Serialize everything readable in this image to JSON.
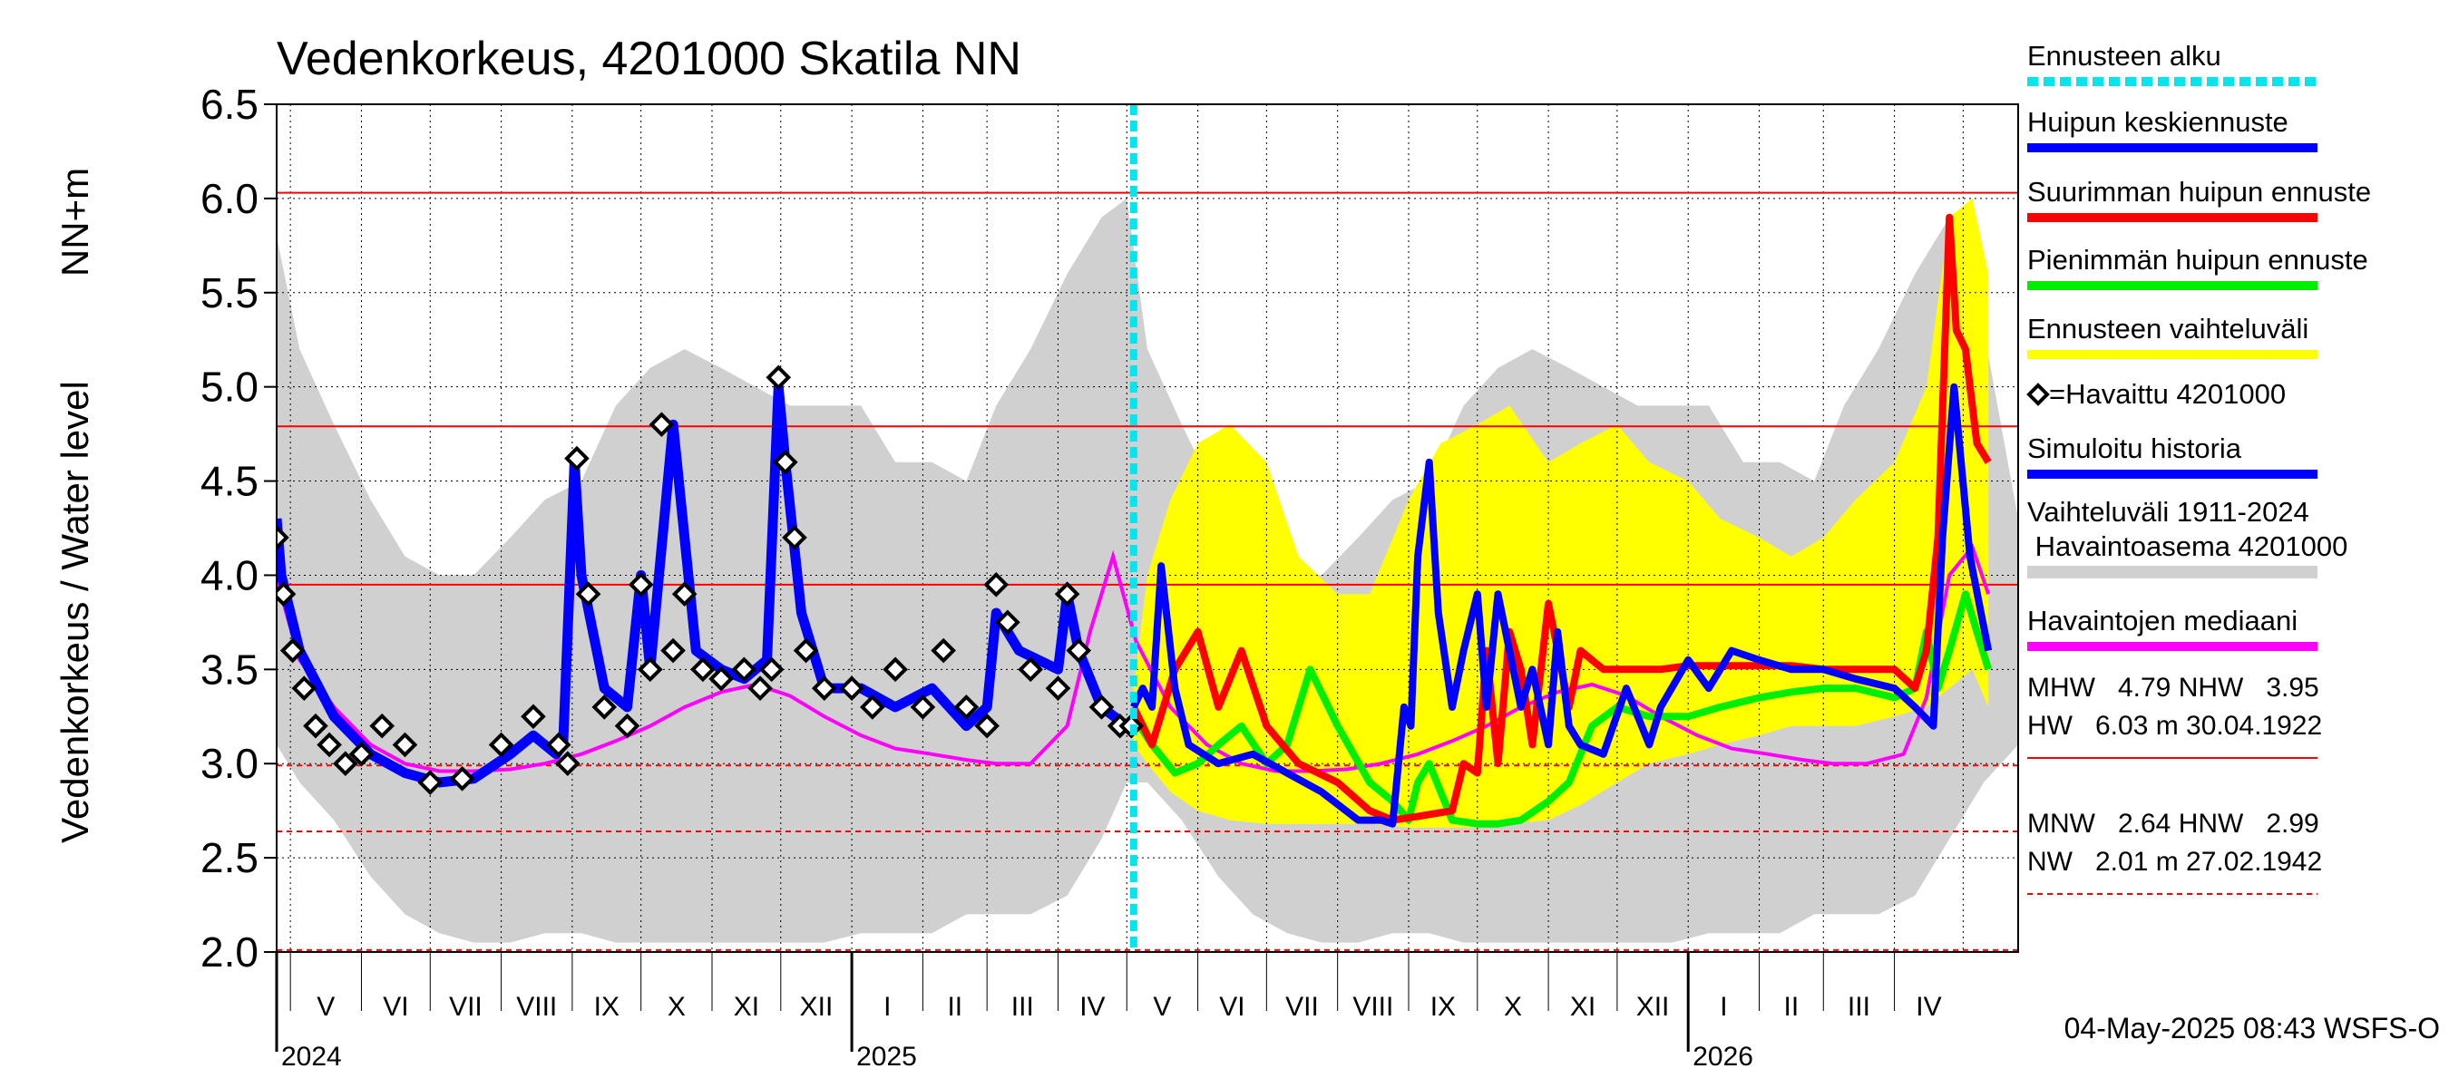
{
  "chart_data": {
    "type": "line",
    "title": "Vedenkorkeus, 4201000 Skatila NN",
    "ylabel": "Vedenkorkeus / Water level",
    "yunit": "NN+m",
    "ylim": [
      2.0,
      6.5
    ],
    "yticks": [
      "6.5",
      "6.0",
      "5.5",
      "5.0",
      "4.5",
      "4.0",
      "3.5",
      "3.0",
      "2.5",
      "2.0"
    ],
    "xlim": [
      "2024-04-25",
      "2026-05-25"
    ],
    "forecast_start": "2025-05-04",
    "months": [
      "V",
      "VI",
      "VII",
      "VIII",
      "IX",
      "X",
      "XI",
      "XII",
      "I",
      "II",
      "III",
      "IV",
      "V",
      "VI",
      "VII",
      "VIII",
      "IX",
      "X",
      "XI",
      "XII",
      "I",
      "II",
      "III",
      "IV"
    ],
    "years": [
      "2024",
      "2025",
      "2026"
    ],
    "grid": true,
    "legend_position": "right",
    "legend": [
      {
        "label": "Ennusteen alku",
        "color": "#00e5ee",
        "style": "dashed"
      },
      {
        "label": "Huipun keskiennuste",
        "color": "#0000ff",
        "style": "solid"
      },
      {
        "label": "Suurimman huipun ennuste",
        "color": "#ff0000",
        "style": "solid"
      },
      {
        "label": "Pienimmän huipun ennuste",
        "color": "#00ee00",
        "style": "solid"
      },
      {
        "label": "Ennusteen vaihteluväli",
        "color": "#ffff00",
        "style": "solid"
      },
      {
        "label": "=Havaittu 4201000",
        "color": "#000000",
        "style": "marker"
      },
      {
        "label": "Simuloitu historia",
        "color": "#0000ff",
        "style": "solid"
      },
      {
        "label": "Vaihteluväli 1911-2024\n Havaintoasema 4201000",
        "color": "#d0d0d0",
        "style": "solid"
      },
      {
        "label": "Havaintojen mediaani",
        "color": "#ff00ff",
        "style": "solid"
      }
    ],
    "stats": [
      {
        "text": "MHW   4.79 NHW   3.95\nHW   6.03 m 30.04.1922",
        "line_style": "solid"
      },
      {
        "text": "MNW   2.64 HNW   2.99\nNW   2.01 m 27.02.1942",
        "line_style": "dashed"
      }
    ],
    "reference_lines": [
      {
        "name": "HW",
        "value": 6.03,
        "style": "solid"
      },
      {
        "name": "MHW",
        "value": 4.79,
        "style": "solid"
      },
      {
        "name": "NHW",
        "value": 3.95,
        "style": "solid"
      },
      {
        "name": "HNW",
        "value": 2.99,
        "style": "dashed"
      },
      {
        "name": "MNW",
        "value": 2.64,
        "style": "dashed"
      },
      {
        "name": "NW",
        "value": 2.01,
        "style": "dashed"
      }
    ],
    "colors": {
      "band": "#d0d0d0",
      "forecast_band": "#ffff00",
      "median": "#ff00ff",
      "mean_forecast": "#0000ff",
      "max_forecast": "#ff0000",
      "min_forecast": "#00ee00",
      "observed": "#000000",
      "simulated": "#0000ff",
      "forecast_start": "#00e5ee",
      "reference": "#ff0000"
    },
    "series": {
      "band": {
        "x": [
          "2024-04-25",
          "2024-05-05",
          "2024-05-20",
          "2024-06-05",
          "2024-06-20",
          "2024-07-05",
          "2024-07-20",
          "2024-08-05",
          "2024-08-20",
          "2024-09-05",
          "2024-09-20",
          "2024-10-05",
          "2024-10-20",
          "2024-11-05",
          "2024-11-20",
          "2024-12-05",
          "2024-12-20",
          "2025-01-05",
          "2025-01-20",
          "2025-02-05",
          "2025-02-20",
          "2025-03-05",
          "2025-03-20",
          "2025-04-05",
          "2025-04-20",
          "2025-05-01",
          "2025-05-10",
          "2025-05-25",
          "2025-06-10",
          "2025-06-25",
          "2025-07-10",
          "2025-07-25",
          "2025-08-10",
          "2025-08-25",
          "2025-09-10",
          "2025-09-25",
          "2025-10-10",
          "2025-10-25",
          "2025-11-10",
          "2025-11-25",
          "2025-12-10",
          "2025-12-25",
          "2026-01-10",
          "2026-01-25",
          "2026-02-10",
          "2026-02-25",
          "2026-03-10",
          "2026-03-25",
          "2026-04-10",
          "2026-04-25",
          "2026-05-10",
          "2026-05-25"
        ],
        "high": [
          5.8,
          5.2,
          4.8,
          4.4,
          4.1,
          4.0,
          4.0,
          4.2,
          4.4,
          4.5,
          4.9,
          5.1,
          5.2,
          5.1,
          5.0,
          4.9,
          4.9,
          4.9,
          4.6,
          4.6,
          4.5,
          4.9,
          5.2,
          5.6,
          5.9,
          6.0,
          5.2,
          4.8,
          4.4,
          4.1,
          4.0,
          4.0,
          4.2,
          4.4,
          4.5,
          4.9,
          5.1,
          5.2,
          5.1,
          5.0,
          4.9,
          4.9,
          4.9,
          4.6,
          4.6,
          4.5,
          4.9,
          5.2,
          5.6,
          5.9,
          5.3,
          4.3
        ],
        "low": [
          3.1,
          2.9,
          2.7,
          2.4,
          2.2,
          2.1,
          2.05,
          2.05,
          2.1,
          2.1,
          2.05,
          2.05,
          2.05,
          2.05,
          2.05,
          2.05,
          2.05,
          2.1,
          2.1,
          2.1,
          2.2,
          2.2,
          2.2,
          2.3,
          2.6,
          2.9,
          2.9,
          2.7,
          2.4,
          2.2,
          2.1,
          2.05,
          2.05,
          2.1,
          2.1,
          2.05,
          2.05,
          2.05,
          2.05,
          2.05,
          2.05,
          2.05,
          2.1,
          2.1,
          2.1,
          2.2,
          2.2,
          2.2,
          2.3,
          2.6,
          2.9,
          3.1
        ]
      },
      "forecast_band": {
        "x": [
          "2025-05-04",
          "2025-05-10",
          "2025-05-20",
          "2025-06-01",
          "2025-06-15",
          "2025-07-01",
          "2025-07-15",
          "2025-08-01",
          "2025-08-15",
          "2025-09-01",
          "2025-09-15",
          "2025-10-01",
          "2025-10-15",
          "2025-11-01",
          "2025-11-15",
          "2025-12-01",
          "2025-12-15",
          "2026-01-01",
          "2026-01-15",
          "2026-02-01",
          "2026-02-15",
          "2026-03-01",
          "2026-03-15",
          "2026-04-01",
          "2026-04-15",
          "2026-04-25",
          "2026-05-05",
          "2026-05-12"
        ],
        "high": [
          3.4,
          4.0,
          4.4,
          4.7,
          4.8,
          4.6,
          4.1,
          3.9,
          3.9,
          4.4,
          4.7,
          4.8,
          4.9,
          4.6,
          4.7,
          4.8,
          4.6,
          4.5,
          4.3,
          4.2,
          4.1,
          4.2,
          4.4,
          4.6,
          5.0,
          5.9,
          6.0,
          5.6
        ],
        "low": [
          3.1,
          3.0,
          2.85,
          2.75,
          2.7,
          2.68,
          2.68,
          2.68,
          2.68,
          2.66,
          2.66,
          2.66,
          2.68,
          2.7,
          2.78,
          2.9,
          3.0,
          3.05,
          3.1,
          3.15,
          3.2,
          3.2,
          3.2,
          3.25,
          3.3,
          3.4,
          3.5,
          3.3
        ]
      },
      "median": {
        "x": [
          "2024-04-25",
          "2024-05-05",
          "2024-05-20",
          "2024-06-05",
          "2024-06-20",
          "2024-07-05",
          "2024-07-20",
          "2024-08-05",
          "2024-08-20",
          "2024-09-05",
          "2024-09-20",
          "2024-10-05",
          "2024-10-20",
          "2024-11-05",
          "2024-11-20",
          "2024-12-05",
          "2024-12-20",
          "2025-01-05",
          "2025-01-20",
          "2025-02-05",
          "2025-02-20",
          "2025-03-05",
          "2025-03-20",
          "2025-04-05",
          "2025-04-15",
          "2025-04-25",
          "2025-05-05",
          "2025-05-20",
          "2025-06-05",
          "2025-06-20",
          "2025-07-05",
          "2025-07-20",
          "2025-08-05",
          "2025-08-20",
          "2025-09-05",
          "2025-09-20",
          "2025-10-05",
          "2025-10-20",
          "2025-11-05",
          "2025-11-20",
          "2025-12-05",
          "2025-12-20",
          "2026-01-05",
          "2026-01-20",
          "2026-02-05",
          "2026-02-20",
          "2026-03-05",
          "2026-03-20",
          "2026-04-05",
          "2026-04-15",
          "2026-04-25",
          "2026-05-05",
          "2026-05-12"
        ],
        "y": [
          3.98,
          3.55,
          3.3,
          3.1,
          3.0,
          2.96,
          2.96,
          2.97,
          3.0,
          3.05,
          3.12,
          3.2,
          3.3,
          3.38,
          3.42,
          3.36,
          3.25,
          3.15,
          3.08,
          3.05,
          3.02,
          3.0,
          3.0,
          3.2,
          3.7,
          4.1,
          3.65,
          3.3,
          3.1,
          3.0,
          2.96,
          2.96,
          2.97,
          3.0,
          3.05,
          3.12,
          3.2,
          3.3,
          3.38,
          3.42,
          3.36,
          3.25,
          3.15,
          3.08,
          3.05,
          3.02,
          3.0,
          3.0,
          3.05,
          3.35,
          4.0,
          4.15,
          3.9
        ]
      },
      "simulated": {
        "x": [
          "2024-04-25",
          "2024-04-27",
          "2024-05-05",
          "2024-05-20",
          "2024-06-05",
          "2024-06-20",
          "2024-07-05",
          "2024-07-20",
          "2024-08-05",
          "2024-08-15",
          "2024-08-25",
          "2024-08-28",
          "2024-09-02",
          "2024-09-05",
          "2024-09-15",
          "2024-09-25",
          "2024-10-01",
          "2024-10-05",
          "2024-10-15",
          "2024-10-25",
          "2024-11-05",
          "2024-11-15",
          "2024-11-20",
          "2024-11-25",
          "2024-11-30",
          "2024-12-03",
          "2024-12-10",
          "2024-12-20",
          "2025-01-05",
          "2025-01-20",
          "2025-02-05",
          "2025-02-20",
          "2025-03-01",
          "2025-03-05",
          "2025-03-15",
          "2025-04-01",
          "2025-04-05",
          "2025-04-10",
          "2025-04-20",
          "2025-05-01",
          "2025-05-04"
        ],
        "y": [
          4.3,
          4.0,
          3.6,
          3.25,
          3.05,
          2.95,
          2.9,
          2.92,
          3.05,
          3.15,
          3.05,
          3.1,
          4.6,
          4.0,
          3.4,
          3.3,
          4.0,
          3.5,
          4.8,
          3.6,
          3.5,
          3.45,
          3.5,
          3.55,
          5.0,
          4.6,
          3.8,
          3.4,
          3.4,
          3.3,
          3.4,
          3.2,
          3.3,
          3.8,
          3.6,
          3.5,
          3.9,
          3.6,
          3.3,
          3.2,
          3.2
        ]
      },
      "observed": {
        "x": [
          "2024-04-25",
          "2024-04-28",
          "2024-05-02",
          "2024-05-07",
          "2024-05-12",
          "2024-05-18",
          "2024-05-25",
          "2024-06-01",
          "2024-06-10",
          "2024-06-20",
          "2024-07-01",
          "2024-07-15",
          "2024-08-01",
          "2024-08-15",
          "2024-08-26",
          "2024-08-30",
          "2024-09-03",
          "2024-09-08",
          "2024-09-15",
          "2024-09-25",
          "2024-10-01",
          "2024-10-05",
          "2024-10-10",
          "2024-10-15",
          "2024-10-20",
          "2024-10-28",
          "2024-11-05",
          "2024-11-15",
          "2024-11-22",
          "2024-11-27",
          "2024-11-30",
          "2024-12-03",
          "2024-12-07",
          "2024-12-12",
          "2024-12-20",
          "2025-01-01",
          "2025-01-10",
          "2025-01-20",
          "2025-02-01",
          "2025-02-10",
          "2025-02-20",
          "2025-03-01",
          "2025-03-05",
          "2025-03-10",
          "2025-03-20",
          "2025-04-01",
          "2025-04-05",
          "2025-04-10",
          "2025-04-20",
          "2025-04-28",
          "2025-05-03"
        ],
        "y": [
          4.2,
          3.9,
          3.6,
          3.4,
          3.2,
          3.1,
          3.0,
          3.05,
          3.2,
          3.1,
          2.9,
          2.92,
          3.1,
          3.25,
          3.1,
          3.0,
          4.62,
          3.9,
          3.3,
          3.2,
          3.95,
          3.5,
          4.8,
          3.6,
          3.9,
          3.5,
          3.45,
          3.5,
          3.4,
          3.5,
          5.05,
          4.6,
          4.2,
          3.6,
          3.4,
          3.4,
          3.3,
          3.5,
          3.3,
          3.6,
          3.3,
          3.2,
          3.95,
          3.75,
          3.5,
          3.4,
          3.9,
          3.6,
          3.3,
          3.2,
          3.2
        ]
      },
      "mean_forecast": {
        "x": [
          "2025-05-04",
          "2025-05-08",
          "2025-05-12",
          "2025-05-16",
          "2025-05-22",
          "2025-05-28",
          "2025-06-10",
          "2025-06-25",
          "2025-07-10",
          "2025-07-25",
          "2025-08-10",
          "2025-08-20",
          "2025-08-25",
          "2025-08-30",
          "2025-09-02",
          "2025-09-05",
          "2025-09-10",
          "2025-09-14",
          "2025-09-20",
          "2025-09-25",
          "2025-10-01",
          "2025-10-05",
          "2025-10-10",
          "2025-10-15",
          "2025-10-20",
          "2025-10-25",
          "2025-11-01",
          "2025-11-05",
          "2025-11-10",
          "2025-11-15",
          "2025-11-25",
          "2025-12-05",
          "2025-12-15",
          "2025-12-20",
          "2026-01-01",
          "2026-01-10",
          "2026-01-20",
          "2026-02-01",
          "2026-02-15",
          "2026-03-01",
          "2026-03-15",
          "2026-04-01",
          "2026-04-10",
          "2026-04-18",
          "2026-04-22",
          "2026-04-27",
          "2026-05-04",
          "2026-05-12"
        ],
        "y": [
          3.3,
          3.4,
          3.3,
          4.05,
          3.4,
          3.1,
          3.0,
          3.05,
          2.95,
          2.85,
          2.7,
          2.7,
          2.68,
          3.3,
          3.2,
          4.1,
          4.6,
          3.8,
          3.3,
          3.6,
          3.9,
          3.3,
          3.9,
          3.6,
          3.3,
          3.5,
          3.1,
          3.7,
          3.2,
          3.1,
          3.05,
          3.4,
          3.1,
          3.3,
          3.55,
          3.4,
          3.6,
          3.55,
          3.5,
          3.5,
          3.45,
          3.4,
          3.3,
          3.2,
          4.2,
          5.0,
          4.1,
          3.6
        ]
      },
      "max_forecast": {
        "x": [
          "2025-05-04",
          "2025-05-12",
          "2025-05-22",
          "2025-06-01",
          "2025-06-10",
          "2025-06-20",
          "2025-07-01",
          "2025-07-15",
          "2025-08-01",
          "2025-08-15",
          "2025-08-25",
          "2025-09-05",
          "2025-09-20",
          "2025-09-25",
          "2025-10-01",
          "2025-10-05",
          "2025-10-10",
          "2025-10-15",
          "2025-10-20",
          "2025-10-25",
          "2025-11-01",
          "2025-11-10",
          "2025-11-15",
          "2025-11-25",
          "2025-12-10",
          "2025-12-20",
          "2026-01-01",
          "2026-01-15",
          "2026-02-01",
          "2026-02-15",
          "2026-03-01",
          "2026-03-15",
          "2026-04-01",
          "2026-04-10",
          "2026-04-15",
          "2026-04-20",
          "2026-04-25",
          "2026-04-28",
          "2026-05-02",
          "2026-05-07",
          "2026-05-12"
        ],
        "y": [
          3.3,
          3.1,
          3.5,
          3.7,
          3.3,
          3.6,
          3.2,
          3.0,
          2.9,
          2.75,
          2.7,
          2.72,
          2.75,
          3.0,
          2.95,
          3.6,
          3.0,
          3.7,
          3.5,
          3.1,
          3.85,
          3.3,
          3.6,
          3.5,
          3.5,
          3.5,
          3.52,
          3.52,
          3.52,
          3.52,
          3.5,
          3.5,
          3.5,
          3.4,
          3.6,
          4.2,
          5.9,
          5.3,
          5.2,
          4.7,
          4.6
        ]
      },
      "min_forecast": {
        "x": [
          "2025-05-04",
          "2025-05-12",
          "2025-05-22",
          "2025-06-01",
          "2025-06-10",
          "2025-06-20",
          "2025-07-01",
          "2025-07-10",
          "2025-07-20",
          "2025-08-01",
          "2025-08-15",
          "2025-08-25",
          "2025-09-01",
          "2025-09-05",
          "2025-09-10",
          "2025-09-20",
          "2025-10-01",
          "2025-10-10",
          "2025-10-20",
          "2025-11-01",
          "2025-11-10",
          "2025-11-20",
          "2025-12-01",
          "2025-12-15",
          "2026-01-01",
          "2026-01-15",
          "2026-02-01",
          "2026-02-15",
          "2026-03-01",
          "2026-03-15",
          "2026-04-01",
          "2026-04-10",
          "2026-04-15",
          "2026-04-20",
          "2026-04-25",
          "2026-05-02",
          "2026-05-07",
          "2026-05-12"
        ],
        "y": [
          3.25,
          3.1,
          2.95,
          3.0,
          3.1,
          3.2,
          3.0,
          3.1,
          3.5,
          3.2,
          2.9,
          2.8,
          2.7,
          2.9,
          3.0,
          2.7,
          2.68,
          2.68,
          2.7,
          2.8,
          2.9,
          3.2,
          3.3,
          3.25,
          3.25,
          3.3,
          3.35,
          3.38,
          3.4,
          3.4,
          3.35,
          3.4,
          3.7,
          3.4,
          3.6,
          3.9,
          3.7,
          3.5
        ]
      }
    }
  },
  "footer": {
    "timestamp": "04-May-2025 08:43 WSFS-O"
  }
}
